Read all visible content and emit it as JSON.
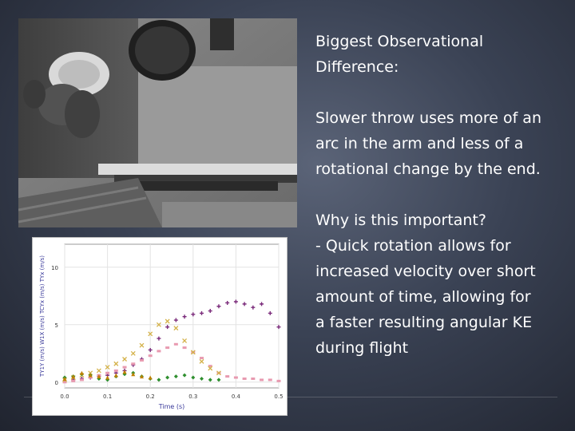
{
  "slide": {
    "heading_line1": "Biggest Observational",
    "heading_line2": "Difference:",
    "para1_line1": "Slower throw uses more of an",
    "para1_line2": "arc in the arm and less of a",
    "para1_line3": "rotational change by the end.",
    "para2_line1": "Why is this important?",
    "para2_line2": "- Quick rotation allows for",
    "para2_line3": "increased velocity over short",
    "para2_line4": "amount of time, allowing for",
    "para2_line5": "a faster resulting angular KE",
    "para2_line6": "during flight"
  },
  "chart_data": {
    "type": "scatter",
    "xlabel": "Time (s)",
    "ylabel": "TY1Y (m/s) W1X (m/s) TCYx (m/s) TYx (m/s)",
    "x_ticks": [
      "0.0",
      "0.1",
      "0.2",
      "0.3",
      "0.4",
      "0.5"
    ],
    "y_ticks": [
      "0",
      "5",
      "10"
    ],
    "xlim": [
      0,
      0.5
    ],
    "ylim": [
      -0.5,
      12
    ],
    "series": [
      {
        "color": "#7a2a7a",
        "marker": "plus",
        "x": [
          0.0,
          0.02,
          0.04,
          0.06,
          0.08,
          0.1,
          0.12,
          0.14,
          0.16,
          0.18,
          0.2,
          0.22,
          0.24,
          0.26,
          0.28,
          0.3,
          0.32,
          0.34,
          0.36,
          0.38,
          0.4,
          0.42,
          0.44,
          0.46,
          0.48,
          0.5
        ],
        "y": [
          0.1,
          0.2,
          0.3,
          0.4,
          0.5,
          0.6,
          0.8,
          1.0,
          1.5,
          2.0,
          2.8,
          3.8,
          4.8,
          5.4,
          5.7,
          5.9,
          6.0,
          6.2,
          6.6,
          6.9,
          7.0,
          6.8,
          6.5,
          6.8,
          6.0,
          4.8
        ]
      },
      {
        "color": "#e89ab0",
        "marker": "square",
        "x": [
          0.0,
          0.02,
          0.04,
          0.06,
          0.08,
          0.1,
          0.12,
          0.14,
          0.16,
          0.18,
          0.2,
          0.22,
          0.24,
          0.26,
          0.28,
          0.3,
          0.32,
          0.34,
          0.36,
          0.38,
          0.4,
          0.42,
          0.44,
          0.46,
          0.48,
          0.5
        ],
        "y": [
          0.0,
          0.1,
          0.2,
          0.4,
          0.6,
          0.8,
          1.0,
          1.3,
          1.6,
          1.9,
          2.3,
          2.7,
          3.0,
          3.3,
          3.0,
          2.6,
          2.1,
          1.4,
          0.8,
          0.5,
          0.4,
          0.3,
          0.3,
          0.2,
          0.2,
          0.1
        ]
      },
      {
        "color": "#d4b24a",
        "marker": "cross",
        "x": [
          0.0,
          0.02,
          0.04,
          0.06,
          0.08,
          0.1,
          0.12,
          0.14,
          0.16,
          0.18,
          0.2,
          0.22,
          0.24,
          0.26,
          0.28,
          0.3,
          0.32,
          0.34,
          0.36
        ],
        "y": [
          0.2,
          0.4,
          0.6,
          0.8,
          1.0,
          1.3,
          1.6,
          2.0,
          2.5,
          3.2,
          4.2,
          5.0,
          5.3,
          4.7,
          3.6,
          2.6,
          1.8,
          1.2,
          0.8
        ]
      },
      {
        "color": "#2f8f2f",
        "marker": "diamond",
        "x": [
          0.0,
          0.02,
          0.04,
          0.06,
          0.08,
          0.1,
          0.12,
          0.14,
          0.16,
          0.18,
          0.2,
          0.22,
          0.24,
          0.26,
          0.28,
          0.3,
          0.32,
          0.34,
          0.36
        ],
        "y": [
          0.4,
          0.5,
          0.7,
          0.6,
          0.3,
          0.2,
          0.5,
          0.7,
          0.8,
          0.5,
          0.3,
          0.2,
          0.4,
          0.5,
          0.6,
          0.4,
          0.3,
          0.2,
          0.2
        ]
      },
      {
        "color": "#c08000",
        "marker": "tri",
        "x": [
          0.0,
          0.02,
          0.04,
          0.06,
          0.08,
          0.1,
          0.12,
          0.14,
          0.16,
          0.18,
          0.2
        ],
        "y": [
          0.3,
          0.5,
          0.8,
          0.6,
          0.5,
          0.4,
          0.6,
          0.9,
          0.7,
          0.5,
          0.4
        ]
      }
    ]
  }
}
